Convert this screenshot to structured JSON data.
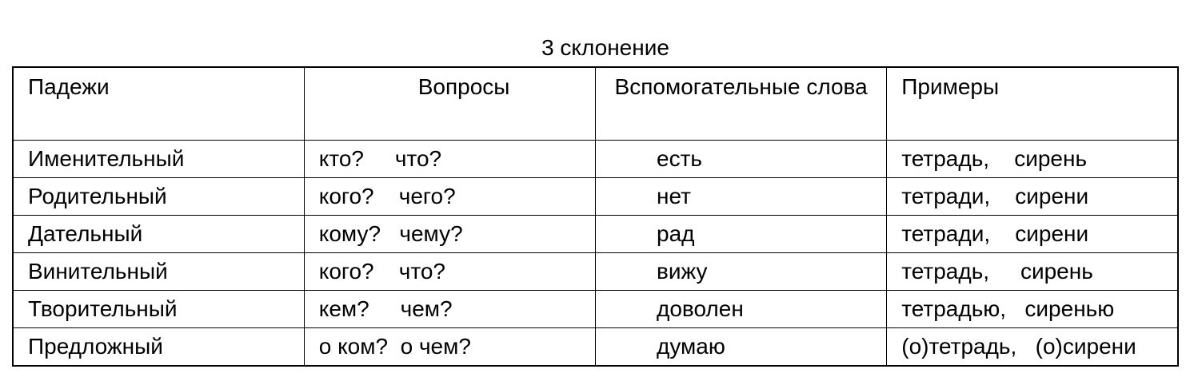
{
  "title": "3 склонение",
  "headers": [
    "Падежи",
    "Вопросы",
    "Вспомогательные слова",
    "Примеры"
  ],
  "rows": [
    {
      "case": "Именительный",
      "questions": "кто?     что?",
      "helper": "есть",
      "examples": "тетрадь,    сирень"
    },
    {
      "case": "Родительный",
      "questions": "кого?    чего?",
      "helper": "нет",
      "examples": "тетради,    сирени"
    },
    {
      "case": "Дательный",
      "questions": "кому?   чему?",
      "helper": "рад",
      "examples": "тетради,    сирени"
    },
    {
      "case": "Винительный",
      "questions": "кого?    что?",
      "helper": "вижу",
      "examples": "тетрадь,     сирень"
    },
    {
      "case": "Творительный",
      "questions": "кем?     чем?",
      "helper": "доволен",
      "examples": "тетрадью,   сиренью"
    },
    {
      "case": "Предложный",
      "questions": "о ком?  о чем?",
      "helper": "думаю",
      "examples": "(о)тетрадь,   (о)сирени"
    }
  ]
}
